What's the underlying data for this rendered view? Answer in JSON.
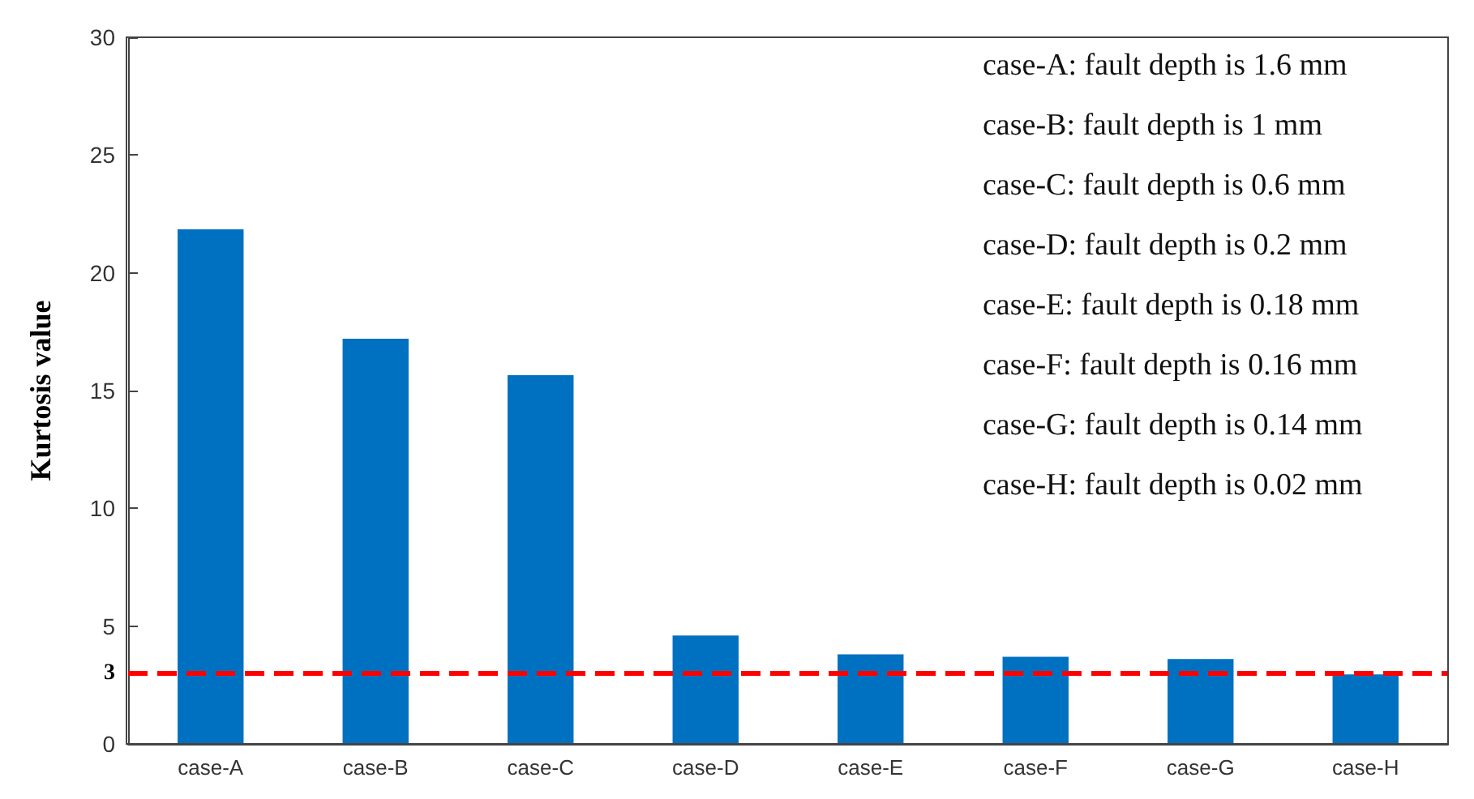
{
  "chart_data": {
    "type": "bar",
    "ylabel": "Kurtosis value",
    "categories": [
      "case-A",
      "case-B",
      "case-C",
      "case-D",
      "case-E",
      "case-F",
      "case-G",
      "case-H"
    ],
    "values": [
      21.85,
      17.2,
      15.65,
      4.6,
      3.8,
      3.7,
      3.6,
      2.95
    ],
    "color": "#0070c0",
    "ylim": [
      0,
      30
    ],
    "yticks": [
      0,
      3,
      5,
      10,
      15,
      20,
      25,
      30
    ],
    "grid": false,
    "ref_lines": [
      {
        "axis": "y",
        "value": 3,
        "color": "#ff0000",
        "line_style": "dashed"
      }
    ],
    "annotations": [
      "case-A: fault depth is 1.6 mm",
      "case-B: fault depth is 1 mm",
      "case-C: fault depth is 0.6 mm",
      "case-D: fault depth is 0.2 mm",
      "case-E: fault depth is 0.18 mm",
      "case-F: fault depth is 0.16 mm",
      "case-G: fault depth is 0.14 mm",
      "case-H: fault depth is 0.02 mm"
    ]
  }
}
